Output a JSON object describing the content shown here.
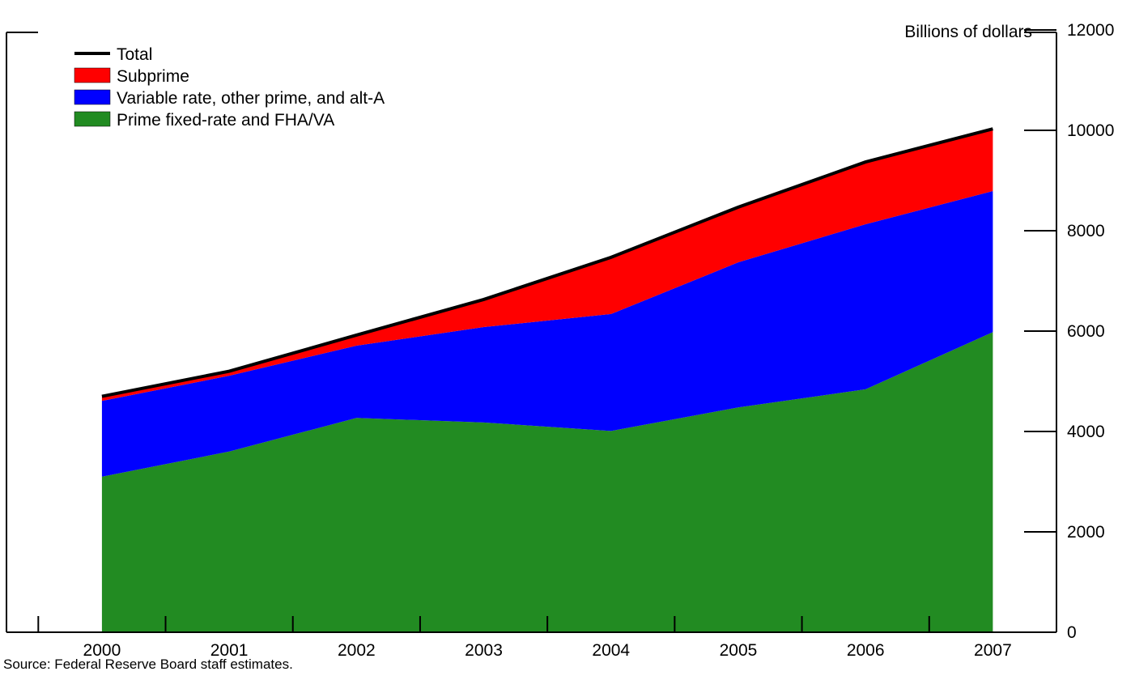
{
  "chart_data": {
    "type": "stacked_area",
    "y_axis_label": "Billions of dollars",
    "source": "Source: Federal Reserve Board staff estimates.",
    "x": [
      2000,
      2001,
      2002,
      2003,
      2004,
      2005,
      2006,
      2007
    ],
    "xlim": [
      1999.25,
      2007.5
    ],
    "xticks": [
      1999.5,
      2000.5,
      2001.5,
      2002.5,
      2003.5,
      2004.5,
      2005.5,
      2006.5
    ],
    "ylim": [
      0,
      12000
    ],
    "yticks": [
      0,
      2000,
      4000,
      6000,
      8000,
      10000,
      12000
    ],
    "legend_position": "upper left",
    "series": [
      {
        "name": "Prime fixed-rate and FHA/VA",
        "color": "#228b22",
        "values": [
          3100,
          3600,
          4270,
          4180,
          4010,
          4480,
          4840,
          5980
        ]
      },
      {
        "name": "Variable rate, other prime, and alt-A",
        "color": "#0000ff",
        "values": [
          1510,
          1510,
          1440,
          1900,
          2330,
          2890,
          3290,
          2810
        ]
      },
      {
        "name": "Subprime",
        "color": "#ff0000",
        "values": [
          90,
          90,
          210,
          550,
          1130,
          1100,
          1240,
          1240
        ]
      }
    ],
    "total": {
      "name": "Total",
      "color": "#000000",
      "values": [
        4700,
        5200,
        5920,
        6630,
        7470,
        8470,
        9370,
        10030
      ]
    }
  }
}
